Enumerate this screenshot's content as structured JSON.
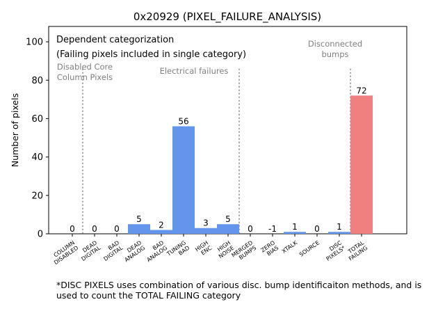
{
  "chart_data": {
    "type": "bar",
    "title": "0x20929 (PIXEL_FAILURE_ANALYSIS)",
    "xlabel": "",
    "ylabel": "Number of pixels",
    "ylim": [
      0,
      108
    ],
    "yticks": [
      0,
      20,
      40,
      60,
      80,
      100
    ],
    "categories": [
      [
        "COLUMN",
        "DISABLED"
      ],
      [
        "DEAD",
        "DIGITAL"
      ],
      [
        "BAD",
        "DIGITAL"
      ],
      [
        "DEAD",
        "ANALOG"
      ],
      [
        "BAD",
        "ANALOG"
      ],
      [
        "TUNING",
        "BAD"
      ],
      [
        "HIGH",
        "ENC"
      ],
      [
        "HIGH",
        "NOISE"
      ],
      [
        "MERGED",
        "BUMPS"
      ],
      [
        "ZERO",
        "BIAS"
      ],
      [
        "XTALK"
      ],
      [
        "SOURCE"
      ],
      [
        "DISC",
        "PIXELS*"
      ],
      [
        "TOTAL",
        "FAILING"
      ]
    ],
    "values": [
      0,
      0,
      0,
      5,
      2,
      56,
      3,
      5,
      0,
      -1,
      1,
      0,
      1,
      72
    ],
    "value_labels": [
      "0",
      "0",
      "0",
      "5",
      "2",
      "56",
      "3",
      "5",
      "0",
      "-1",
      "1",
      "0",
      "1",
      "72"
    ],
    "bar_colors": [
      "#6495ED",
      "#6495ED",
      "#6495ED",
      "#6495ED",
      "#6495ED",
      "#6495ED",
      "#6495ED",
      "#6495ED",
      "#6495ED",
      "#6495ED",
      "#6495ED",
      "#6495ED",
      "#6495ED",
      "#F08080"
    ],
    "annotations": {
      "header_line1": "Dependent categorization",
      "header_line2": "(Failing pixels included in single category)",
      "group_disabled": [
        "Disabled Core",
        "Column Pixels"
      ],
      "group_electrical": "Electrical failures",
      "group_disconnected": [
        "Disconnected",
        "bumps"
      ]
    },
    "footnote": "*DISC PIXELS uses combination of various disc. bump identificaiton methods, and is used to count the TOTAL FAILING category",
    "grid": false
  }
}
